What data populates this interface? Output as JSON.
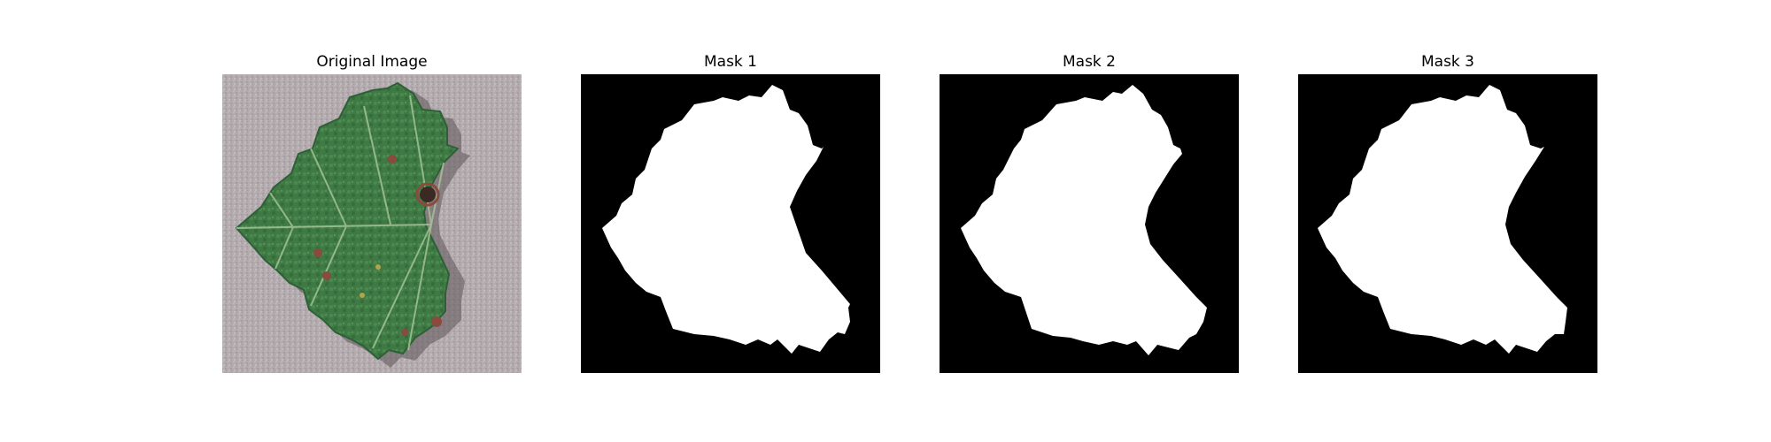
{
  "figure": {
    "panels": [
      {
        "title": "Original Image",
        "kind": "photo"
      },
      {
        "title": "Mask 1",
        "kind": "mask"
      },
      {
        "title": "Mask 2",
        "kind": "mask"
      },
      {
        "title": "Mask 3",
        "kind": "mask"
      }
    ]
  },
  "colors": {
    "background": "#ffffff",
    "photo_background": "#b3abae",
    "leaf": "#3f7a45",
    "leaf_dark": "#2f5f36",
    "vein": "#a9c79a",
    "lesion": "#8a4a3e",
    "mask_background": "#000000",
    "mask_foreground": "#ffffff"
  }
}
